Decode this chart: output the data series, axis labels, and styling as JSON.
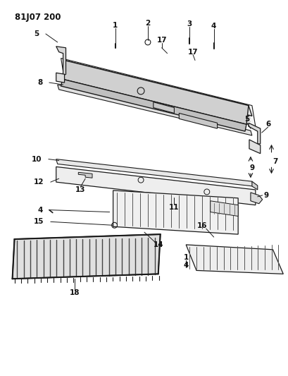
{
  "title": "81J07 200",
  "bg_color": "#ffffff",
  "line_color": "#1a1a1a",
  "text_color": "#111111",
  "figsize": [
    4.1,
    5.33
  ],
  "dpi": 100
}
